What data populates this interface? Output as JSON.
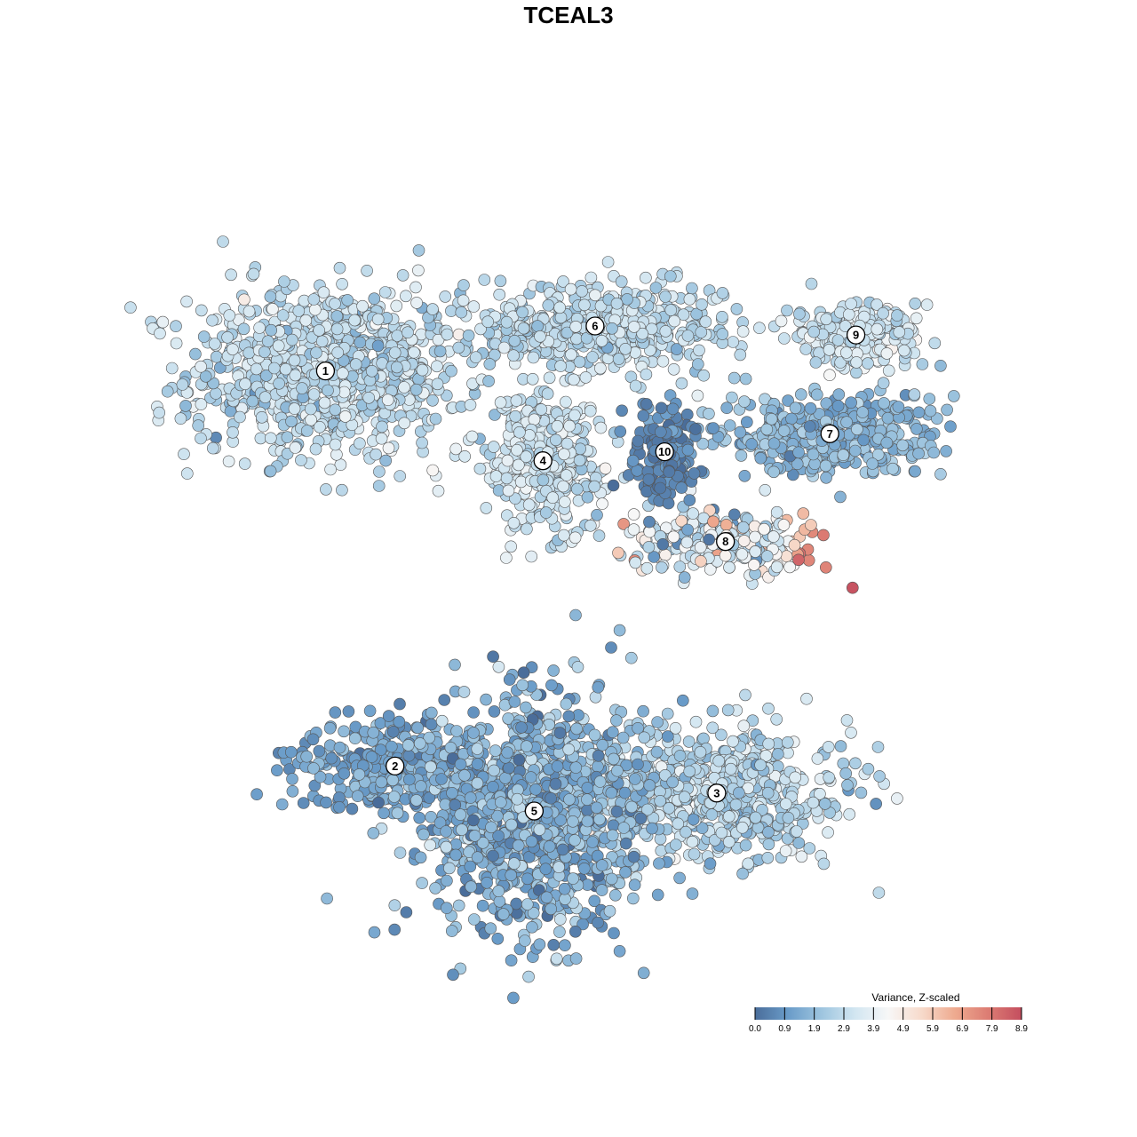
{
  "chart_data": {
    "type": "scatter",
    "title": "TCEAL3",
    "legend": {
      "title": "Variance, Z-scaled",
      "placement": "bottom-right",
      "ticks": [
        "0.0",
        "0.9",
        "1.9",
        "2.9",
        "3.9",
        "4.9",
        "5.9",
        "6.9",
        "7.9",
        "8.9"
      ],
      "range": [
        0.0,
        8.9
      ],
      "colors": [
        "#4a6d9a",
        "#6a9cc9",
        "#9ec5df",
        "#d2e6f1",
        "#f7f7f7",
        "#f7dacb",
        "#eeaa8f",
        "#dc7c73",
        "#c44e5f"
      ]
    },
    "cluster_labels": [
      "1",
      "2",
      "3",
      "4",
      "5",
      "6",
      "7",
      "8",
      "9",
      "10"
    ],
    "clusters": [
      {
        "id": "1",
        "center": [
          -28,
          22
        ],
        "spread": [
          13,
          8
        ],
        "n": 900,
        "value_mean": 3.0,
        "value_sd": 0.55
      },
      {
        "id": "2",
        "center": [
          -20,
          -22
        ],
        "spread": [
          10,
          4
        ],
        "n": 340,
        "value_mean": 1.3,
        "value_sd": 0.5
      },
      {
        "id": "3",
        "center": [
          17,
          -25
        ],
        "spread": [
          13,
          6
        ],
        "n": 650,
        "value_mean": 2.8,
        "value_sd": 0.6
      },
      {
        "id": "4",
        "center": [
          -3,
          12
        ],
        "spread": [
          6,
          6
        ],
        "n": 340,
        "value_mean": 3.2,
        "value_sd": 0.5
      },
      {
        "id": "5",
        "center": [
          -4,
          -27
        ],
        "spread": [
          11,
          11
        ],
        "n": 1000,
        "value_mean": 1.7,
        "value_sd": 0.7
      },
      {
        "id": "6",
        "center": [
          3,
          27
        ],
        "spread": [
          13,
          4
        ],
        "n": 500,
        "value_mean": 2.9,
        "value_sd": 0.5
      },
      {
        "id": "7",
        "center": [
          30,
          15
        ],
        "spread": [
          11,
          4
        ],
        "n": 360,
        "value_mean": 1.8,
        "value_sd": 0.5
      },
      {
        "id": "8",
        "center": [
          18,
          3
        ],
        "spread": [
          9,
          3
        ],
        "n": 250,
        "value_mean": 3.4,
        "value_sd": 1.2
      },
      {
        "id": "9",
        "center": [
          33,
          26
        ],
        "spread": [
          7,
          3
        ],
        "n": 200,
        "value_mean": 3.2,
        "value_sd": 0.5
      },
      {
        "id": "10",
        "center": [
          11,
          13
        ],
        "spread": [
          3,
          4
        ],
        "n": 160,
        "value_mean": 0.6,
        "value_sd": 0.4
      }
    ],
    "xlim": [
      -45,
      50
    ],
    "ylim": [
      -45,
      45
    ],
    "grid": false
  }
}
